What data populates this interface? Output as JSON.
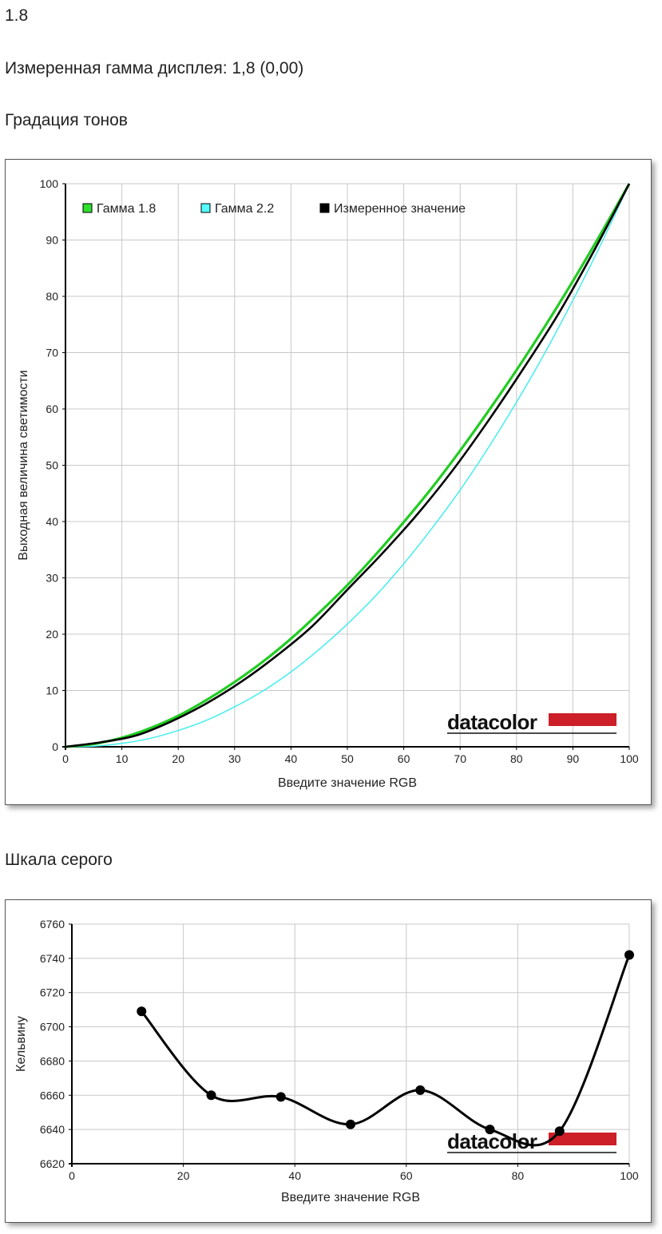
{
  "header": {
    "gamma_value": "1.8",
    "measured_gamma": "Измеренная гамма дисплея: 1,8 (0,00)",
    "tone_title": "Градация тонов",
    "gray_title": "Шкала серого"
  },
  "brand": {
    "logo_text": "datacolor",
    "accent": "#cc1f27"
  },
  "chart_data": [
    {
      "type": "line",
      "xlabel": "Введите значение RGB",
      "ylabel": "Выходная величина светимости",
      "xlim": [
        0,
        100
      ],
      "ylim": [
        0,
        100
      ],
      "xticks": [
        0,
        10,
        20,
        30,
        40,
        50,
        60,
        70,
        80,
        90,
        100
      ],
      "yticks": [
        0,
        10,
        20,
        30,
        40,
        50,
        60,
        70,
        80,
        90,
        100
      ],
      "grid": true,
      "legend_position": "top-left",
      "series": [
        {
          "name": "Гамма 1.8",
          "color": "#22cc22",
          "gamma": 1.8,
          "legend_swatch": "#2ee02e",
          "x": [
            0,
            5,
            10,
            15,
            20,
            25,
            30,
            35,
            40,
            45,
            50,
            55,
            60,
            65,
            70,
            75,
            80,
            85,
            90,
            95,
            100
          ],
          "y": [
            0,
            0.5,
            1.6,
            3.3,
            5.5,
            8.3,
            11.5,
            15.1,
            19.2,
            23.8,
            28.7,
            34.1,
            39.9,
            46.0,
            52.6,
            59.6,
            66.9,
            74.6,
            82.7,
            91.2,
            100
          ]
        },
        {
          "name": "Гамма 2.2",
          "color": "#44eeee",
          "gamma": 2.2,
          "legend_swatch": "#55ffff",
          "x": [
            0,
            5,
            10,
            15,
            20,
            25,
            30,
            35,
            40,
            45,
            50,
            55,
            60,
            65,
            70,
            75,
            80,
            85,
            90,
            95,
            100
          ],
          "y": [
            0,
            0.1,
            0.6,
            1.5,
            2.9,
            4.7,
            7.1,
            9.9,
            13.3,
            17.3,
            21.8,
            26.8,
            32.5,
            38.8,
            45.6,
            53.1,
            61.2,
            69.9,
            79.3,
            89.3,
            100
          ]
        },
        {
          "name": "Измеренное значение",
          "color": "#000000",
          "legend_swatch": "#000000",
          "x": [
            0,
            6.25,
            12.5,
            18.75,
            25,
            31.25,
            37.5,
            43.75,
            50,
            56.25,
            62.5,
            68.75,
            75,
            81.25,
            87.5,
            93.75,
            100
          ],
          "y": [
            0,
            0.8,
            2.0,
            4.5,
            7.7,
            11.6,
            16.2,
            21.4,
            27.9,
            34.4,
            41.4,
            49.2,
            57.9,
            67.2,
            77.0,
            88.1,
            100
          ]
        }
      ]
    },
    {
      "type": "line",
      "xlabel": "Введите значение RGB",
      "ylabel": "Кельвину",
      "xlim": [
        0,
        100
      ],
      "ylim": [
        6620,
        6760
      ],
      "xticks": [
        0,
        20,
        40,
        60,
        80,
        100
      ],
      "yticks": [
        6620,
        6640,
        6660,
        6680,
        6700,
        6720,
        6740,
        6760
      ],
      "grid": true,
      "series": [
        {
          "color": "#000000",
          "x": [
            12.5,
            25,
            37.5,
            50,
            62.5,
            75,
            87.5,
            100
          ],
          "y": [
            6709,
            6660,
            6659,
            6643,
            6663,
            6640,
            6639,
            6742
          ]
        }
      ]
    }
  ]
}
